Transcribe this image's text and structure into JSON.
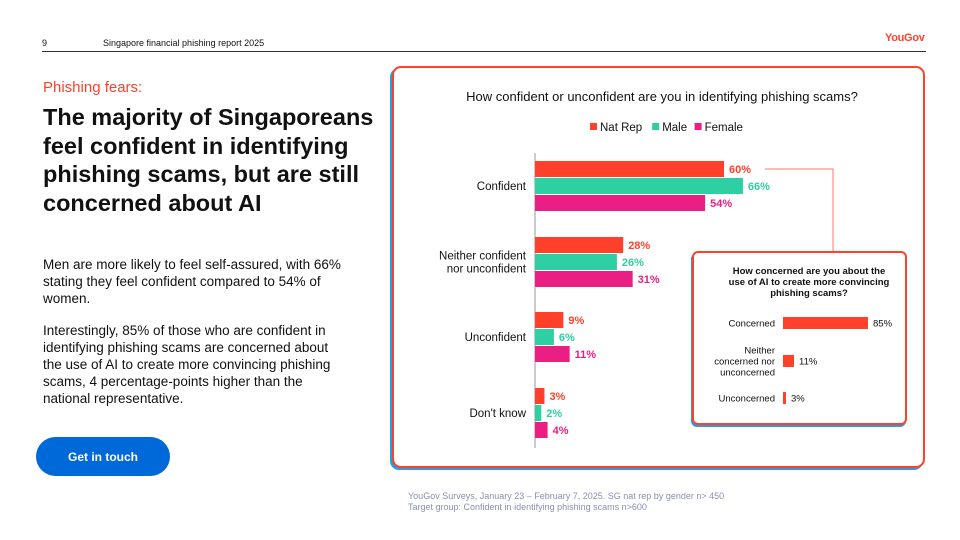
{
  "header": {
    "page_number": "9",
    "report_title": "Singapore financial phishing report 2025",
    "logo": "YouGov"
  },
  "left": {
    "kicker": "Phishing fears:",
    "headline": "The majority of Singaporeans feel confident in identifying phishing scams, but are still concerned about AI",
    "body1": "Men are more likely to feel self-assured, with 66% stating they feel confident compared to 54% of women.",
    "body2": "Interestingly, 85% of those who are confident in identifying phishing scams are concerned about the use of AI to create more convincing phishing scams, 4 percentage-points higher than the national representative.",
    "cta_label": "Get in touch"
  },
  "colors": {
    "nat_rep": "#ff412c",
    "male": "#2ecfa2",
    "female": "#ea1e83",
    "accent": "#ff412c",
    "button": "#0069d9",
    "card_shadow": "#2b9cde"
  },
  "chart_data": [
    {
      "type": "bar",
      "orientation": "horizontal",
      "title": "How confident or unconfident are you in identifying phishing scams?",
      "categories": [
        "Confident",
        "Neither confident nor unconfident",
        "Unconfident",
        "Don't know"
      ],
      "series": [
        {
          "name": "Nat Rep",
          "values": [
            60,
            28,
            9,
            3
          ]
        },
        {
          "name": "Male",
          "values": [
            66,
            26,
            6,
            2
          ]
        },
        {
          "name": "Female",
          "values": [
            54,
            31,
            11,
            4
          ]
        }
      ],
      "value_suffix": "%",
      "legend": "top-center",
      "xlim": [
        0,
        100
      ]
    },
    {
      "type": "bar",
      "orientation": "horizontal",
      "title": "How concerned are you about the use of AI to create more convincing phishing scams?",
      "categories": [
        "Concerned",
        "Neither concerned nor unconcerned",
        "Unconcerned"
      ],
      "values": [
        85,
        11,
        3
      ],
      "value_suffix": "%",
      "xlim": [
        0,
        100
      ]
    }
  ],
  "footer": {
    "source_line1": "YouGov Surveys, January 23 – February 7, 2025. SG nat rep by gender n> 450",
    "source_line2": "Target group: Confident in identifying phishing scams n>600"
  }
}
